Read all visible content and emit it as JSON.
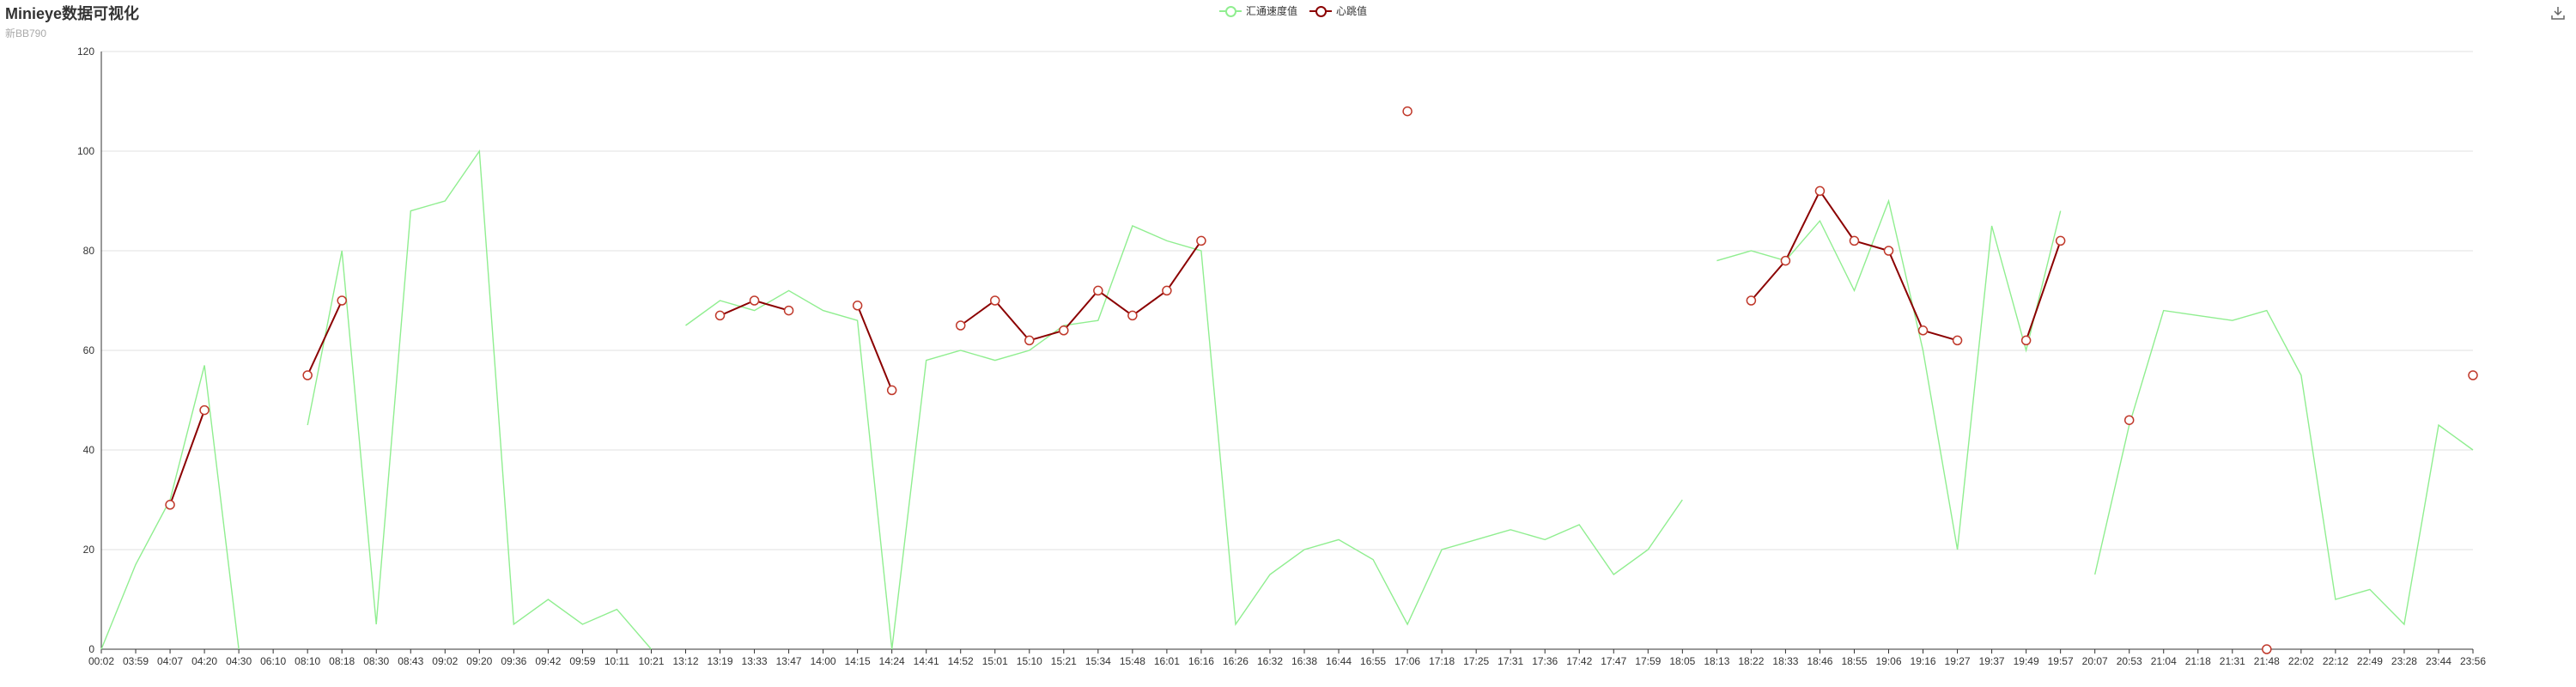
{
  "header": {
    "title": "Minieye数据可视化",
    "subtitle": "新BB790"
  },
  "toolbox": {
    "download_icon": "download-icon"
  },
  "chart_data": {
    "type": "line",
    "title": "Minieye数据可视化",
    "subtitle": "新BB790",
    "ylim": [
      0,
      120
    ],
    "yticks": [
      0,
      20,
      40,
      60,
      80,
      100,
      120
    ],
    "grid": true,
    "legend_position": "top-center",
    "x": [
      "00:02",
      "03:59",
      "04:07",
      "04:20",
      "04:30",
      "06:10",
      "08:10",
      "08:18",
      "08:30",
      "08:43",
      "09:02",
      "09:20",
      "09:36",
      "09:42",
      "09:59",
      "10:11",
      "10:21",
      "13:12",
      "13:19",
      "13:33",
      "13:47",
      "14:00",
      "14:15",
      "14:24",
      "14:41",
      "14:52",
      "15:01",
      "15:10",
      "15:21",
      "15:34",
      "15:48",
      "16:01",
      "16:16",
      "16:26",
      "16:32",
      "16:38",
      "16:44",
      "16:55",
      "17:06",
      "17:18",
      "17:25",
      "17:31",
      "17:36",
      "17:42",
      "17:47",
      "17:59",
      "18:05",
      "18:13",
      "18:22",
      "18:33",
      "18:46",
      "18:55",
      "19:06",
      "19:16",
      "19:27",
      "19:37",
      "19:49",
      "19:57",
      "20:07",
      "20:53",
      "21:04",
      "21:18",
      "21:31",
      "21:48",
      "22:02",
      "22:12",
      "22:49",
      "23:28",
      "23:44",
      "23:56"
    ],
    "series": [
      {
        "name": "汇通速度值",
        "color": "#90ee90",
        "values": [
          0,
          17,
          30,
          57,
          0,
          0,
          45,
          80,
          5,
          88,
          90,
          100,
          5,
          10,
          5,
          8,
          0,
          65,
          70,
          68,
          72,
          68,
          66,
          0,
          58,
          60,
          58,
          60,
          65,
          66,
          85,
          82,
          80,
          5,
          15,
          20,
          22,
          18,
          5,
          20,
          22,
          24,
          22,
          25,
          15,
          20,
          30,
          78,
          80,
          78,
          86,
          72,
          90,
          60,
          20,
          85,
          60,
          88,
          15,
          45,
          68,
          67,
          66,
          68,
          55,
          10,
          12,
          5,
          45,
          40
        ],
        "gaps_after_index": [
          4,
          5,
          16,
          46,
          57
        ]
      },
      {
        "name": "心跳值",
        "color": "#8b0000",
        "values": [
          null,
          null,
          29,
          48,
          null,
          null,
          55,
          70,
          null,
          null,
          null,
          null,
          null,
          null,
          null,
          null,
          null,
          null,
          67,
          70,
          68,
          null,
          69,
          52,
          null,
          65,
          70,
          62,
          64,
          72,
          67,
          72,
          82,
          null,
          null,
          null,
          null,
          null,
          108,
          null,
          null,
          null,
          null,
          null,
          null,
          null,
          null,
          null,
          70,
          78,
          92,
          82,
          80,
          64,
          62,
          null,
          62,
          82,
          null,
          46,
          null,
          null,
          null,
          0,
          null,
          null,
          null,
          null,
          null,
          55
        ]
      }
    ]
  }
}
